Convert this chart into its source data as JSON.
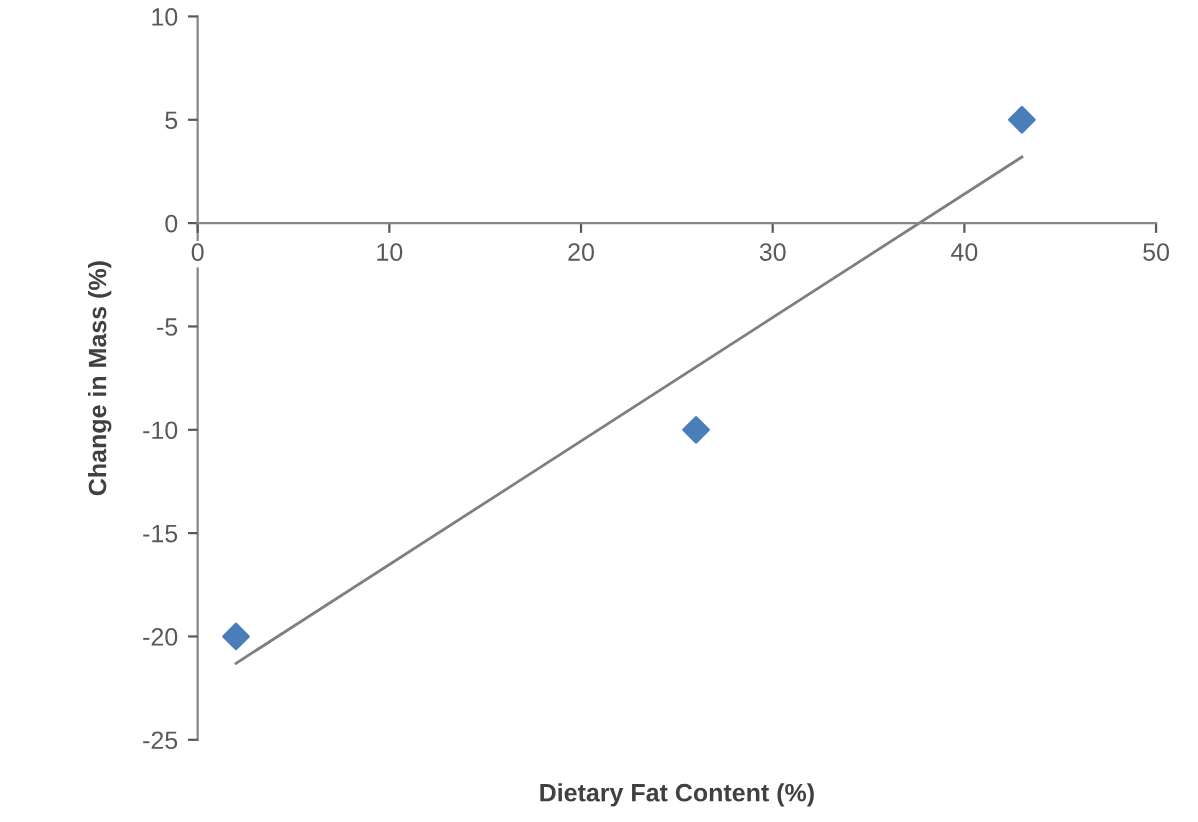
{
  "chart_data": {
    "type": "scatter",
    "xlabel": "Dietary Fat Content (%)",
    "ylabel": "Change in Mass (%)",
    "xlim": [
      0,
      50
    ],
    "xticks": [
      0,
      10,
      20,
      30,
      40,
      50
    ],
    "ylim": [
      -25,
      10
    ],
    "yticks": [
      -25,
      -20,
      -15,
      -10,
      -5,
      0,
      5,
      10
    ],
    "grid": false,
    "legend": false,
    "series": [
      {
        "color": "#4a7ebb",
        "marker": "diamond",
        "x": [
          2,
          26,
          43
        ],
        "values": [
          -20,
          -10,
          5
        ]
      },
      {
        "type": "line",
        "color": "#7f7f7f",
        "marker": "none",
        "line_style": "solid",
        "x": [
          2,
          43
        ],
        "values": [
          -21.3,
          3.2
        ]
      }
    ]
  }
}
